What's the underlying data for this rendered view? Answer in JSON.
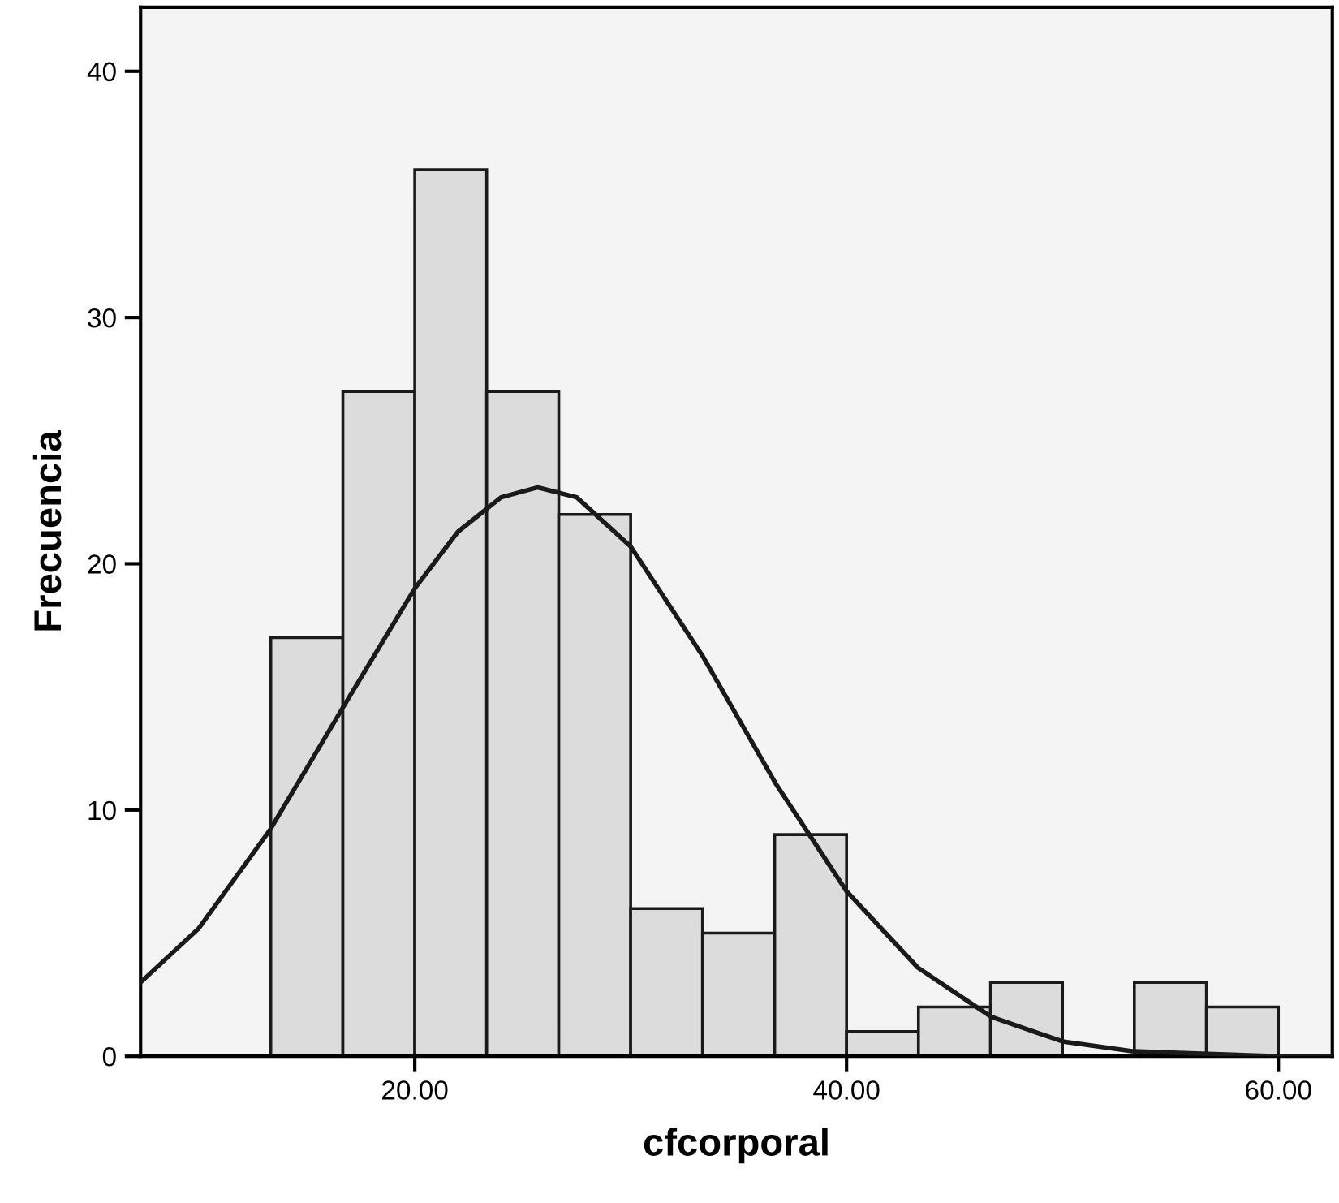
{
  "chart_data": {
    "type": "histogram",
    "xlabel": "cfcorporal",
    "ylabel": "Frecuencia",
    "bins": [
      13.33,
      16.67,
      20,
      23.33,
      26.67,
      30,
      33.33,
      36.67,
      40,
      43.33,
      46.67,
      50,
      53.33,
      56.67,
      60
    ],
    "values": [
      17,
      27,
      36,
      27,
      22,
      6,
      5,
      9,
      1,
      2,
      3,
      0,
      3,
      2
    ],
    "color": "#dcdcdc",
    "series": [
      {
        "type": "line",
        "color": "#1a1a1a",
        "x": [
          7.3,
          10,
          13.3,
          16.7,
          20,
          22,
          24,
          25.7,
          27.5,
          30,
          33.3,
          36.7,
          40,
          43.3,
          46.7,
          50,
          53.3,
          56.7,
          60,
          62.5
        ],
        "values": [
          3.0,
          5.2,
          9.2,
          14.2,
          19.0,
          21.3,
          22.7,
          23.1,
          22.7,
          20.7,
          16.3,
          11.1,
          6.7,
          3.6,
          1.6,
          0.6,
          0.2,
          0.1,
          0.0,
          0.0
        ]
      }
    ],
    "xlim": [
      7.3,
      62.5
    ],
    "ylim": [
      0,
      42.6
    ],
    "xticks": [
      {
        "value": 20,
        "label": "20.00"
      },
      {
        "value": 40,
        "label": "40.00"
      },
      {
        "value": 60,
        "label": "60.00"
      }
    ],
    "yticks": [
      0,
      10,
      20,
      30,
      40
    ],
    "grid": false,
    "legend": false
  }
}
